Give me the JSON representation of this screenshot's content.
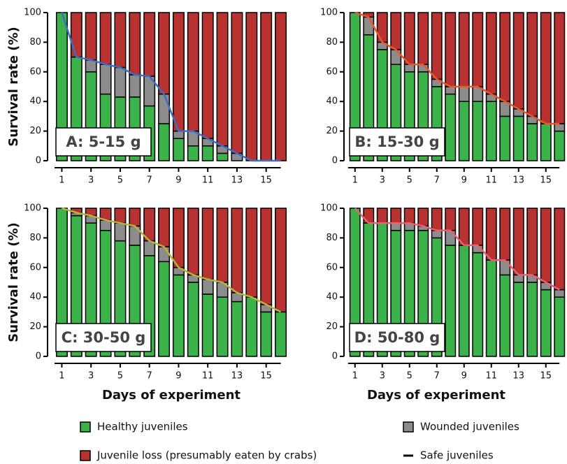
{
  "chart_data": [
    {
      "type": "bar",
      "annotation": "A: 5-15 g",
      "ylabel": "Survival rate (%)",
      "x": [
        1,
        2,
        3,
        4,
        5,
        6,
        7,
        8,
        9,
        10,
        11,
        12,
        13,
        14,
        15,
        16
      ],
      "xticks": [
        1,
        3,
        5,
        7,
        9,
        11,
        13,
        15
      ],
      "ylim": [
        0,
        100
      ],
      "yticks": [
        0,
        20,
        40,
        60,
        80,
        100
      ],
      "stacked": true,
      "series": [
        {
          "name": "Healthy juveniles",
          "color": "#3cb34a",
          "values": [
            100,
            70,
            60,
            45,
            43,
            43,
            37,
            25,
            15,
            10,
            10,
            5,
            0,
            0,
            0,
            0
          ]
        },
        {
          "name": "Wounded juveniles",
          "color": "#8c8c8c",
          "values": [
            0,
            0,
            8,
            20,
            20,
            15,
            20,
            20,
            5,
            10,
            5,
            5,
            5,
            0,
            0,
            0
          ]
        },
        {
          "name": "Juvenile loss (presumably eaten by crabs)",
          "color": "#b83232",
          "values": [
            0,
            30,
            32,
            35,
            37,
            42,
            43,
            55,
            80,
            80,
            85,
            90,
            95,
            100,
            100,
            100
          ]
        },
        {
          "name": "Safe juveniles",
          "type": "line",
          "color": "#3a6fc4",
          "values": [
            100,
            70,
            68,
            65,
            63,
            58,
            57,
            45,
            20,
            20,
            15,
            10,
            5,
            0,
            0,
            0
          ]
        }
      ]
    },
    {
      "type": "bar",
      "annotation": "B: 15-30 g",
      "x": [
        1,
        2,
        3,
        4,
        5,
        6,
        7,
        8,
        9,
        10,
        11,
        12,
        13,
        14,
        15,
        16
      ],
      "xticks": [
        1,
        3,
        5,
        7,
        9,
        11,
        13,
        15
      ],
      "ylim": [
        0,
        100
      ],
      "yticks": [
        0,
        20,
        40,
        60,
        80,
        100
      ],
      "stacked": true,
      "series": [
        {
          "name": "Healthy juveniles",
          "color": "#3cb34a",
          "values": [
            100,
            85,
            75,
            65,
            60,
            60,
            50,
            45,
            40,
            40,
            40,
            30,
            30,
            25,
            25,
            20
          ]
        },
        {
          "name": "Wounded juveniles",
          "color": "#8c8c8c",
          "values": [
            0,
            12,
            5,
            10,
            5,
            5,
            5,
            5,
            10,
            10,
            5,
            10,
            5,
            5,
            0,
            5
          ]
        },
        {
          "name": "Juvenile loss (presumably eaten by crabs)",
          "color": "#b83232",
          "values": [
            0,
            3,
            20,
            25,
            35,
            35,
            45,
            50,
            50,
            50,
            55,
            60,
            65,
            70,
            75,
            75
          ]
        },
        {
          "name": "Safe juveniles",
          "type": "line",
          "color": "#e8562a",
          "values": [
            100,
            97,
            80,
            75,
            65,
            65,
            55,
            50,
            50,
            50,
            45,
            40,
            35,
            30,
            25,
            25
          ]
        }
      ]
    },
    {
      "type": "bar",
      "annotation": "C: 30-50 g",
      "ylabel": "Survival rate (%)",
      "xlabel": "Days of experiment",
      "x": [
        1,
        2,
        3,
        4,
        5,
        6,
        7,
        8,
        9,
        10,
        11,
        12,
        13,
        14,
        15,
        16
      ],
      "xticks": [
        1,
        3,
        5,
        7,
        9,
        11,
        13,
        15
      ],
      "ylim": [
        0,
        100
      ],
      "yticks": [
        0,
        20,
        40,
        60,
        80,
        100
      ],
      "stacked": true,
      "series": [
        {
          "name": "Healthy juveniles",
          "color": "#3cb34a",
          "values": [
            100,
            95,
            90,
            85,
            78,
            75,
            68,
            64,
            55,
            50,
            42,
            40,
            37,
            40,
            30,
            30
          ]
        },
        {
          "name": "Wounded juveniles",
          "color": "#8c8c8c",
          "values": [
            0,
            2,
            5,
            7,
            12,
            13,
            10,
            10,
            5,
            5,
            10,
            10,
            6,
            0,
            5,
            0
          ]
        },
        {
          "name": "Juvenile loss (presumably eaten by crabs)",
          "color": "#b83232",
          "values": [
            0,
            3,
            5,
            8,
            10,
            12,
            22,
            26,
            40,
            45,
            48,
            50,
            57,
            60,
            65,
            70
          ]
        },
        {
          "name": "Safe juveniles",
          "type": "line",
          "color": "#b5b53a",
          "values": [
            100,
            97,
            95,
            92,
            90,
            88,
            78,
            74,
            60,
            55,
            52,
            50,
            43,
            40,
            35,
            30
          ]
        }
      ]
    },
    {
      "type": "bar",
      "annotation": "D: 50-80 g",
      "xlabel": "Days of experiment",
      "x": [
        1,
        2,
        3,
        4,
        5,
        6,
        7,
        8,
        9,
        10,
        11,
        12,
        13,
        14,
        15,
        16
      ],
      "xticks": [
        1,
        3,
        5,
        7,
        9,
        11,
        13,
        15
      ],
      "ylim": [
        0,
        100
      ],
      "yticks": [
        0,
        20,
        40,
        60,
        80,
        100
      ],
      "stacked": true,
      "series": [
        {
          "name": "Healthy juveniles",
          "color": "#3cb34a",
          "values": [
            100,
            90,
            90,
            85,
            85,
            85,
            80,
            75,
            75,
            70,
            65,
            55,
            50,
            50,
            45,
            40
          ]
        },
        {
          "name": "Wounded juveniles",
          "color": "#8c8c8c",
          "values": [
            0,
            0,
            0,
            5,
            5,
            3,
            5,
            10,
            0,
            5,
            0,
            10,
            5,
            5,
            5,
            5
          ]
        },
        {
          "name": "Juvenile loss (presumably eaten by crabs)",
          "color": "#b83232",
          "values": [
            0,
            10,
            10,
            10,
            10,
            12,
            15,
            15,
            25,
            25,
            35,
            35,
            45,
            45,
            50,
            55
          ]
        },
        {
          "name": "Safe juveniles",
          "type": "line",
          "color": "#e86070",
          "values": [
            100,
            90,
            90,
            90,
            90,
            88,
            85,
            85,
            75,
            75,
            65,
            65,
            55,
            55,
            50,
            45
          ]
        }
      ]
    }
  ]
}
